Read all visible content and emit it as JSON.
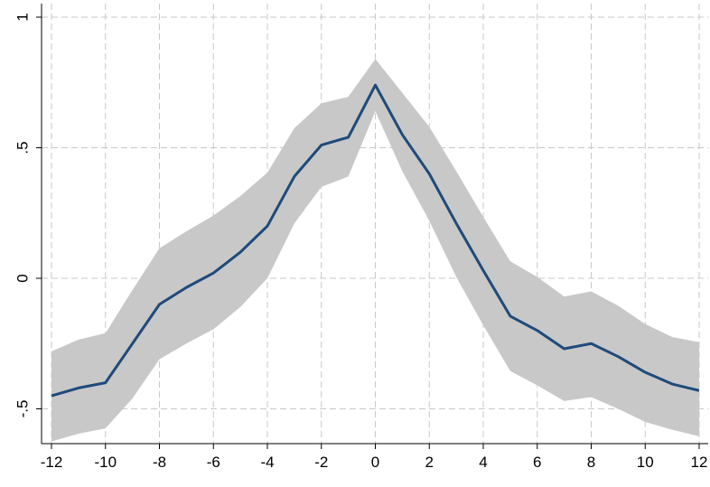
{
  "chart_data": {
    "type": "line",
    "title": "",
    "xlabel": "",
    "ylabel": "",
    "x": [
      -12,
      -11,
      -10,
      -9,
      -8,
      -7,
      -6,
      -5,
      -4,
      -3,
      -2,
      -1,
      0,
      1,
      2,
      3,
      4,
      5,
      6,
      7,
      8,
      9,
      10,
      11,
      12
    ],
    "series": [
      {
        "values": [
          -0.45,
          -0.42,
          -0.4,
          -0.25,
          -0.1,
          -0.035,
          0.02,
          0.1,
          0.2,
          0.39,
          0.51,
          0.54,
          0.74,
          0.55,
          0.4,
          0.21,
          0.03,
          -0.145,
          -0.2,
          -0.27,
          -0.25,
          -0.3,
          -0.36,
          -0.405,
          -0.43
        ],
        "ci_upper": [
          -0.28,
          -0.235,
          -0.21,
          -0.045,
          0.115,
          0.18,
          0.24,
          0.315,
          0.405,
          0.575,
          0.67,
          0.695,
          0.84,
          0.71,
          0.58,
          0.41,
          0.235,
          0.065,
          0.005,
          -0.07,
          -0.05,
          -0.105,
          -0.175,
          -0.225,
          -0.245
        ],
        "ci_lower": [
          -0.625,
          -0.595,
          -0.575,
          -0.46,
          -0.31,
          -0.25,
          -0.195,
          -0.11,
          0.0,
          0.21,
          0.35,
          0.39,
          0.64,
          0.41,
          0.22,
          0.005,
          -0.18,
          -0.355,
          -0.41,
          -0.47,
          -0.455,
          -0.5,
          -0.55,
          -0.58,
          -0.605
        ]
      }
    ],
    "xlim": [
      -12,
      12
    ],
    "ylim": [
      -0.62,
      1.0
    ],
    "x_ticks": [
      "-12",
      "-10",
      "-8",
      "-6",
      "-4",
      "-2",
      "0",
      "2",
      "4",
      "6",
      "8",
      "10",
      "12"
    ],
    "y_ticks": [
      "-.5",
      "0",
      ".5",
      "1"
    ],
    "grid": true,
    "colors": {
      "line": "#1f4a7a",
      "band": "#c8c8c8",
      "grid": "#c8c8c8",
      "axis": "#000000"
    }
  }
}
